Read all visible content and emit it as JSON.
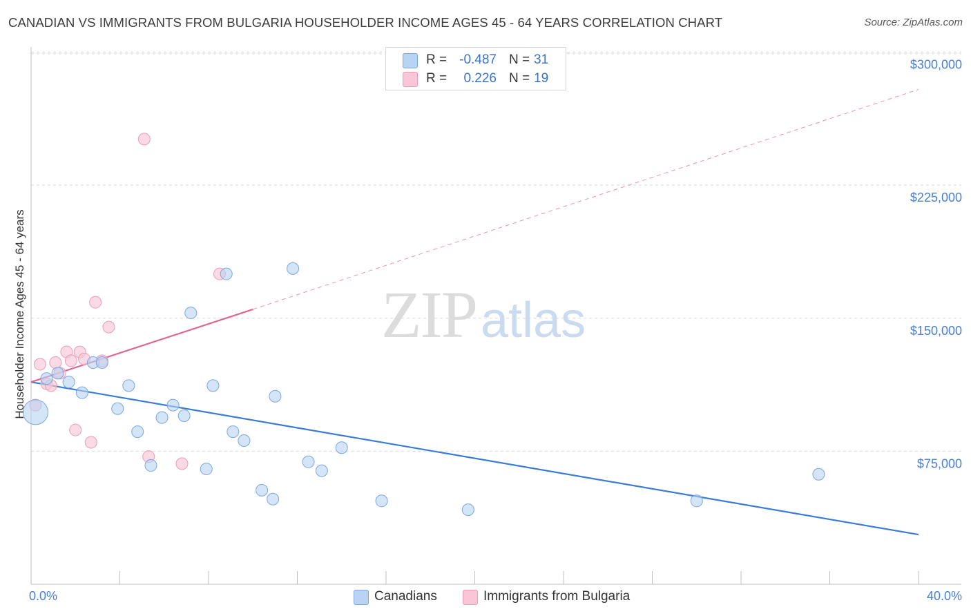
{
  "title": "CANADIAN VS IMMIGRANTS FROM BULGARIA HOUSEHOLDER INCOME AGES 45 - 64 YEARS CORRELATION CHART",
  "source": "Source: ZipAtlas.com",
  "watermark": {
    "zip": "ZIP",
    "atlas": "atlas"
  },
  "legend": {
    "rows": [
      {
        "r_label": "R =",
        "r_value": "-0.487",
        "n_label": "N =",
        "n_value": "31"
      },
      {
        "r_label": "R =",
        "r_value": "0.226",
        "n_label": "N =",
        "n_value": "19"
      }
    ]
  },
  "bottom_legend": {
    "canadians": "Canadians",
    "bulgaria": "Immigrants from Bulgaria"
  },
  "colors": {
    "blue_fill": "#b8d3f4",
    "blue_stroke": "#7aa7de",
    "blue_line": "#3a7bd5",
    "pink_fill": "#f8c6d6",
    "pink_stroke": "#ec9ab6",
    "pink_line": "#e0668e",
    "grid": "#d9d9d9",
    "tick_label": "#4a7fd0"
  },
  "chart_data": {
    "type": "scatter",
    "title": "CANADIAN VS IMMIGRANTS FROM BULGARIA HOUSEHOLDER INCOME AGES 45 - 64 YEARS CORRELATION CHART",
    "xlabel": "",
    "ylabel": "Householder Income Ages 45 - 64 years",
    "xlim": [
      0,
      40
    ],
    "ylim": [
      0,
      308000
    ],
    "x_tick_labels": [
      "0.0%",
      "40.0%"
    ],
    "y_ticks": [
      75000,
      150000,
      225000,
      300000
    ],
    "y_tick_labels": [
      "$75,000",
      "$150,000",
      "$225,000",
      "$300,000"
    ],
    "grid": true,
    "legend_position": "top-center",
    "series": [
      {
        "name": "Canadians",
        "r": -0.487,
        "n": 31,
        "points": [
          {
            "x": 0.2,
            "y": 97000,
            "size": 18
          },
          {
            "x": 0.7,
            "y": 116000
          },
          {
            "x": 1.2,
            "y": 119000
          },
          {
            "x": 1.7,
            "y": 114000
          },
          {
            "x": 2.3,
            "y": 108000
          },
          {
            "x": 2.8,
            "y": 125000
          },
          {
            "x": 3.2,
            "y": 125000
          },
          {
            "x": 3.9,
            "y": 99000
          },
          {
            "x": 4.4,
            "y": 112000
          },
          {
            "x": 4.8,
            "y": 86000
          },
          {
            "x": 5.4,
            "y": 67000
          },
          {
            "x": 5.9,
            "y": 94000
          },
          {
            "x": 6.4,
            "y": 101000
          },
          {
            "x": 6.9,
            "y": 95000
          },
          {
            "x": 7.2,
            "y": 153000
          },
          {
            "x": 7.9,
            "y": 65000
          },
          {
            "x": 8.2,
            "y": 112000
          },
          {
            "x": 8.8,
            "y": 175000
          },
          {
            "x": 9.1,
            "y": 86000
          },
          {
            "x": 9.6,
            "y": 81000
          },
          {
            "x": 10.4,
            "y": 53000
          },
          {
            "x": 10.9,
            "y": 48000
          },
          {
            "x": 11.0,
            "y": 106000
          },
          {
            "x": 11.8,
            "y": 178000
          },
          {
            "x": 12.5,
            "y": 69000
          },
          {
            "x": 13.1,
            "y": 64000
          },
          {
            "x": 14.0,
            "y": 77000
          },
          {
            "x": 15.8,
            "y": 47000
          },
          {
            "x": 19.7,
            "y": 42000
          },
          {
            "x": 30.0,
            "y": 47000
          },
          {
            "x": 35.5,
            "y": 62000
          }
        ],
        "trend": {
          "x0": 0,
          "y0": 114000,
          "x1": 40,
          "y1": 28000
        }
      },
      {
        "name": "Immigrants from Bulgaria",
        "r": 0.226,
        "n": 19,
        "points": [
          {
            "x": 0.2,
            "y": 101000
          },
          {
            "x": 0.4,
            "y": 124000
          },
          {
            "x": 0.7,
            "y": 113000
          },
          {
            "x": 0.9,
            "y": 112000
          },
          {
            "x": 1.1,
            "y": 125000
          },
          {
            "x": 1.3,
            "y": 119000
          },
          {
            "x": 1.6,
            "y": 131000
          },
          {
            "x": 1.8,
            "y": 126000
          },
          {
            "x": 2.2,
            "y": 131000
          },
          {
            "x": 2.4,
            "y": 127000
          },
          {
            "x": 2.0,
            "y": 87000
          },
          {
            "x": 2.7,
            "y": 80000
          },
          {
            "x": 2.9,
            "y": 159000
          },
          {
            "x": 3.2,
            "y": 126000
          },
          {
            "x": 3.5,
            "y": 145000
          },
          {
            "x": 5.1,
            "y": 251000
          },
          {
            "x": 5.3,
            "y": 72000
          },
          {
            "x": 6.8,
            "y": 68000
          },
          {
            "x": 8.5,
            "y": 175000
          }
        ],
        "trend": {
          "x0": 0,
          "y0": 114000,
          "x1": 10,
          "y1": 155000
        },
        "trend_extension": {
          "x0": 10,
          "y0": 155000,
          "x1": 40,
          "y1": 279000
        }
      }
    ]
  }
}
